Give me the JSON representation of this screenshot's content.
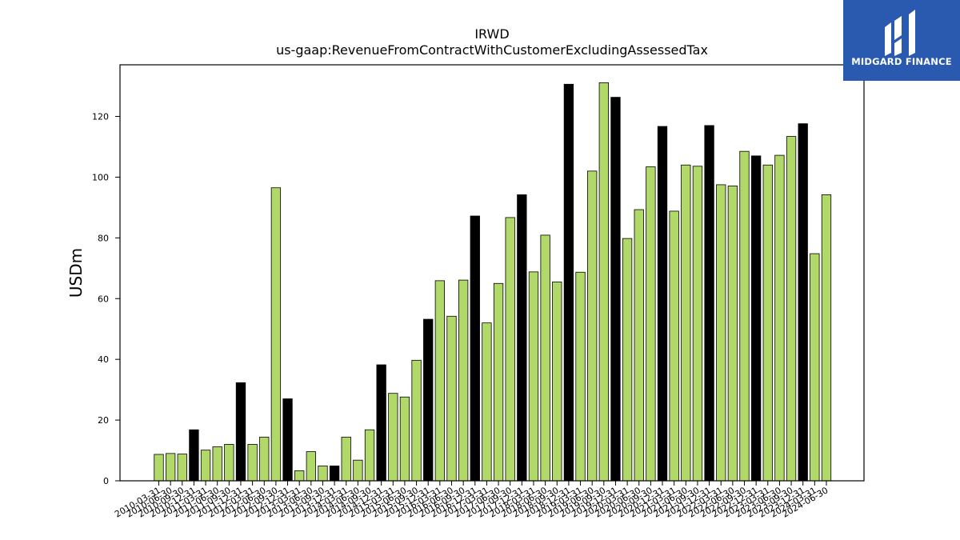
{
  "chart_data": {
    "type": "bar",
    "title": "IRWD",
    "subtitle": "us-gaap:RevenueFromContractWithCustomerExcludingAssessedTax",
    "xlabel": "",
    "ylabel": "USDm",
    "ylim": [
      0,
      137
    ],
    "yticks": [
      0,
      20,
      40,
      60,
      80,
      100,
      120
    ],
    "grid": false,
    "categories": [
      "2010-03-31",
      "2010-06-30",
      "2010-09-30",
      "2010-12-31",
      "2011-03-31",
      "2011-06-30",
      "2011-09-30",
      "2011-12-31",
      "2012-03-31",
      "2012-06-30",
      "2012-09-30",
      "2012-12-31",
      "2013-03-31",
      "2013-06-30",
      "2013-09-30",
      "2013-12-31",
      "2014-03-31",
      "2014-06-30",
      "2014-09-30",
      "2014-12-31",
      "2015-03-31",
      "2015-06-30",
      "2015-09-30",
      "2015-12-31",
      "2016-03-31",
      "2016-06-30",
      "2016-09-30",
      "2016-12-31",
      "2017-03-31",
      "2017-06-30",
      "2017-09-30",
      "2017-12-31",
      "2018-03-31",
      "2018-06-30",
      "2018-09-30",
      "2018-12-31",
      "2019-03-31",
      "2019-06-30",
      "2019-09-30",
      "2019-12-31",
      "2020-03-31",
      "2020-06-30",
      "2020-09-30",
      "2020-12-31",
      "2021-03-31",
      "2021-06-30",
      "2021-09-30",
      "2021-12-31",
      "2022-03-31",
      "2022-06-30",
      "2022-09-30",
      "2022-12-31",
      "2023-03-31",
      "2023-06-30",
      "2023-09-30",
      "2023-12-31",
      "2024-03-31",
      "2024-06-30"
    ],
    "values": [
      8.7,
      9.0,
      8.8,
      16.8,
      10.1,
      11.2,
      12.0,
      32.3,
      12.0,
      14.4,
      96.5,
      27.0,
      3.3,
      9.6,
      4.9,
      4.9,
      14.4,
      6.8,
      16.8,
      38.2,
      28.8,
      27.6,
      39.7,
      53.2,
      65.9,
      54.2,
      66.1,
      87.2,
      52.0,
      65.0,
      86.7,
      94.2,
      68.8,
      80.9,
      65.5,
      130.6,
      68.7,
      102.0,
      131.1,
      126.3,
      79.8,
      89.3,
      103.4,
      116.7,
      88.8,
      104.0,
      103.6,
      117.0,
      97.5,
      97.1,
      108.5,
      107.0,
      104.0,
      107.2,
      113.4,
      117.6,
      74.8,
      94.2
    ],
    "highlight": [
      false,
      false,
      false,
      true,
      false,
      false,
      false,
      true,
      false,
      false,
      false,
      true,
      false,
      false,
      false,
      true,
      false,
      false,
      false,
      true,
      false,
      false,
      false,
      true,
      false,
      false,
      false,
      true,
      false,
      false,
      false,
      true,
      false,
      false,
      false,
      true,
      false,
      false,
      false,
      true,
      false,
      false,
      false,
      true,
      false,
      false,
      false,
      true,
      false,
      false,
      false,
      true,
      false,
      false,
      false,
      true,
      false,
      false
    ],
    "colors": {
      "bar": "#b0d96a",
      "highlight": "#000000",
      "edge": "#000000"
    }
  },
  "logo": {
    "text": "MIDGARD FINANCE",
    "background": "#2a5aaf"
  }
}
